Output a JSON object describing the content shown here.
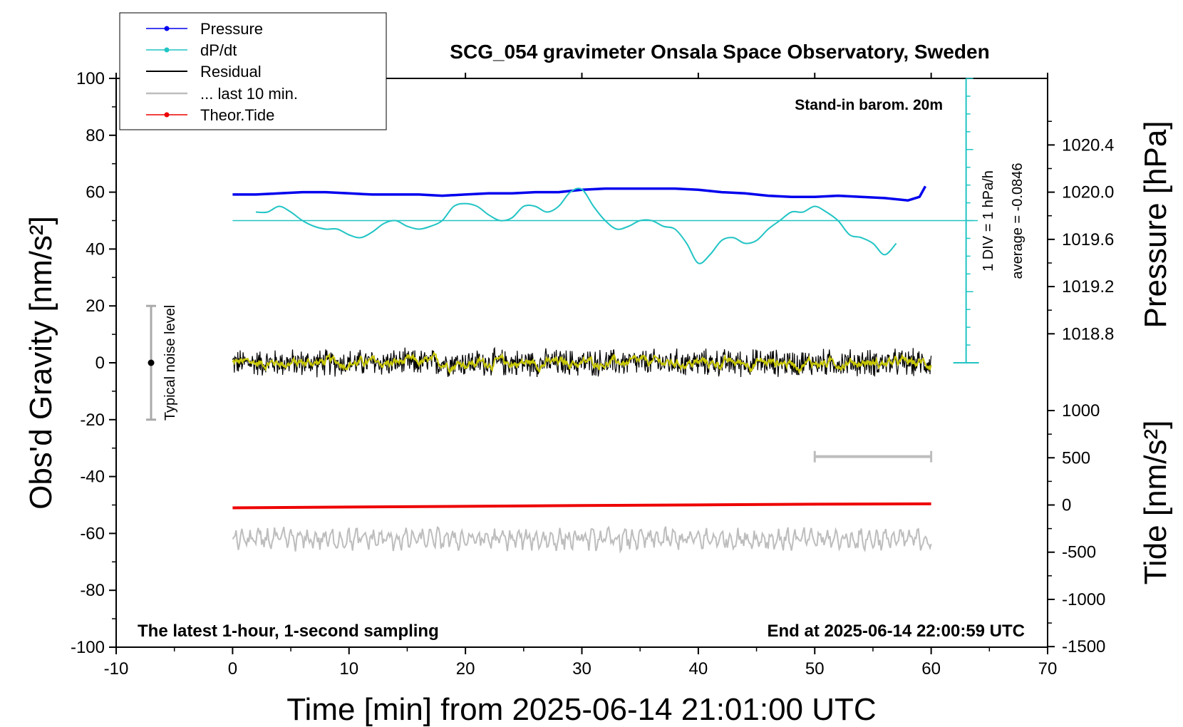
{
  "chart_data": {
    "type": "line",
    "title": "SCG_054 gravimeter Onsala Space Observatory, Sweden",
    "xlabel": "Time [min] from 2025-06-14 21:01:00 UTC",
    "ylabel_left": "Obs'd Gravity [nm/s²]",
    "ylabel_right_top": "Pressure [hPa]",
    "ylabel_right_bottom": "Tide [nm/s²]",
    "xlim": [
      -10,
      70
    ],
    "ylim": [
      -100,
      100
    ],
    "pressure_lim": [
      1018.4,
      1020.8
    ],
    "tide_lim": [
      -1500,
      1500
    ],
    "x_ticks": [
      "-10",
      "0",
      "10",
      "20",
      "30",
      "40",
      "50",
      "60",
      "70"
    ],
    "y_ticks": [
      "100",
      "80",
      "60",
      "40",
      "20",
      "0",
      "-20",
      "-40",
      "-60",
      "-80",
      "-100"
    ],
    "pressure_ticks": [
      "1020.4",
      "1020.0",
      "1019.6",
      "1019.2",
      "1018.8"
    ],
    "tide_ticks": [
      "1000",
      "500",
      "0",
      "-500",
      "-1000",
      "-1500"
    ],
    "annotations": {
      "barometer": "Stand-in barom. 20m",
      "latest": "The latest 1-hour, 1-second sampling",
      "end": "End at 2025-06-14 22:00:59 UTC",
      "noise": "Typical noise level",
      "div": "1 DIV = 1 hPa/h",
      "average": "average = -0.0846"
    },
    "legend": {
      "placement": "top-left",
      "entries": [
        "Pressure",
        "dP/dt",
        "Residual",
        "... last 10 min.",
        "Theor.Tide"
      ]
    },
    "colors": {
      "pressure": "#0000ee",
      "dpdt": "#22c4c4",
      "residual": "#000000",
      "residual_smooth": "#c8c800",
      "last10": "#bdbdbd",
      "tide": "#ee0000"
    },
    "series": [
      {
        "name": "Pressure",
        "unit": "hPa",
        "x": [
          0,
          2,
          4,
          6,
          8,
          10,
          12,
          14,
          16,
          18,
          20,
          22,
          24,
          26,
          28,
          30,
          32,
          34,
          36,
          38,
          40,
          42,
          44,
          46,
          48,
          50,
          52,
          54,
          56,
          58,
          59,
          59.5
        ],
        "y": [
          1019.98,
          1019.98,
          1019.99,
          1020.0,
          1020.0,
          1019.99,
          1019.98,
          1019.98,
          1019.98,
          1019.97,
          1019.98,
          1019.99,
          1019.99,
          1020.0,
          1020.0,
          1020.02,
          1020.03,
          1020.03,
          1020.03,
          1020.03,
          1020.02,
          1020.0,
          1019.99,
          1019.97,
          1019.96,
          1019.96,
          1019.97,
          1019.96,
          1019.95,
          1019.93,
          1019.96,
          1020.05
        ]
      },
      {
        "name": "dP/dt",
        "unit": "nm/s² plot scale",
        "x": [
          2,
          3,
          4,
          5,
          6,
          7,
          8,
          9,
          10,
          11,
          12,
          13,
          14,
          15,
          16,
          17,
          18,
          19,
          20,
          21,
          22,
          23,
          24,
          25,
          26,
          27,
          28,
          29,
          30,
          31,
          32,
          33,
          34,
          35,
          36,
          37,
          38,
          39,
          40,
          41,
          42,
          43,
          44,
          45,
          46,
          47,
          48,
          49,
          50,
          51,
          52,
          53,
          54,
          55,
          56,
          57
        ],
        "y": [
          53,
          53,
          55,
          53,
          50,
          48,
          47,
          47,
          45,
          44,
          46,
          49,
          50,
          48,
          47,
          48,
          50,
          55,
          56,
          55,
          52,
          50,
          51,
          55,
          55,
          53,
          55,
          60,
          61,
          55,
          50,
          47,
          48,
          50,
          50,
          48,
          47,
          42,
          35,
          38,
          43,
          44,
          42,
          43,
          47,
          50,
          53,
          53,
          55,
          53,
          50,
          45,
          44,
          42,
          38,
          42
        ]
      },
      {
        "name": "Theor.Tide",
        "unit": "nm/s²",
        "x": [
          0,
          10,
          20,
          30,
          40,
          50,
          60
        ],
        "y": [
          -30,
          -22,
          -14,
          -6,
          1,
          8,
          12
        ]
      },
      {
        "name": "Residual",
        "unit": "nm/s²",
        "level": 0,
        "amplitude": 4
      },
      {
        "name": "... last 10 min.",
        "xrange": [
          50,
          60
        ],
        "level": -62
      }
    ],
    "noise_bar": {
      "x": -7,
      "ylim": [
        -20,
        20
      ]
    }
  }
}
